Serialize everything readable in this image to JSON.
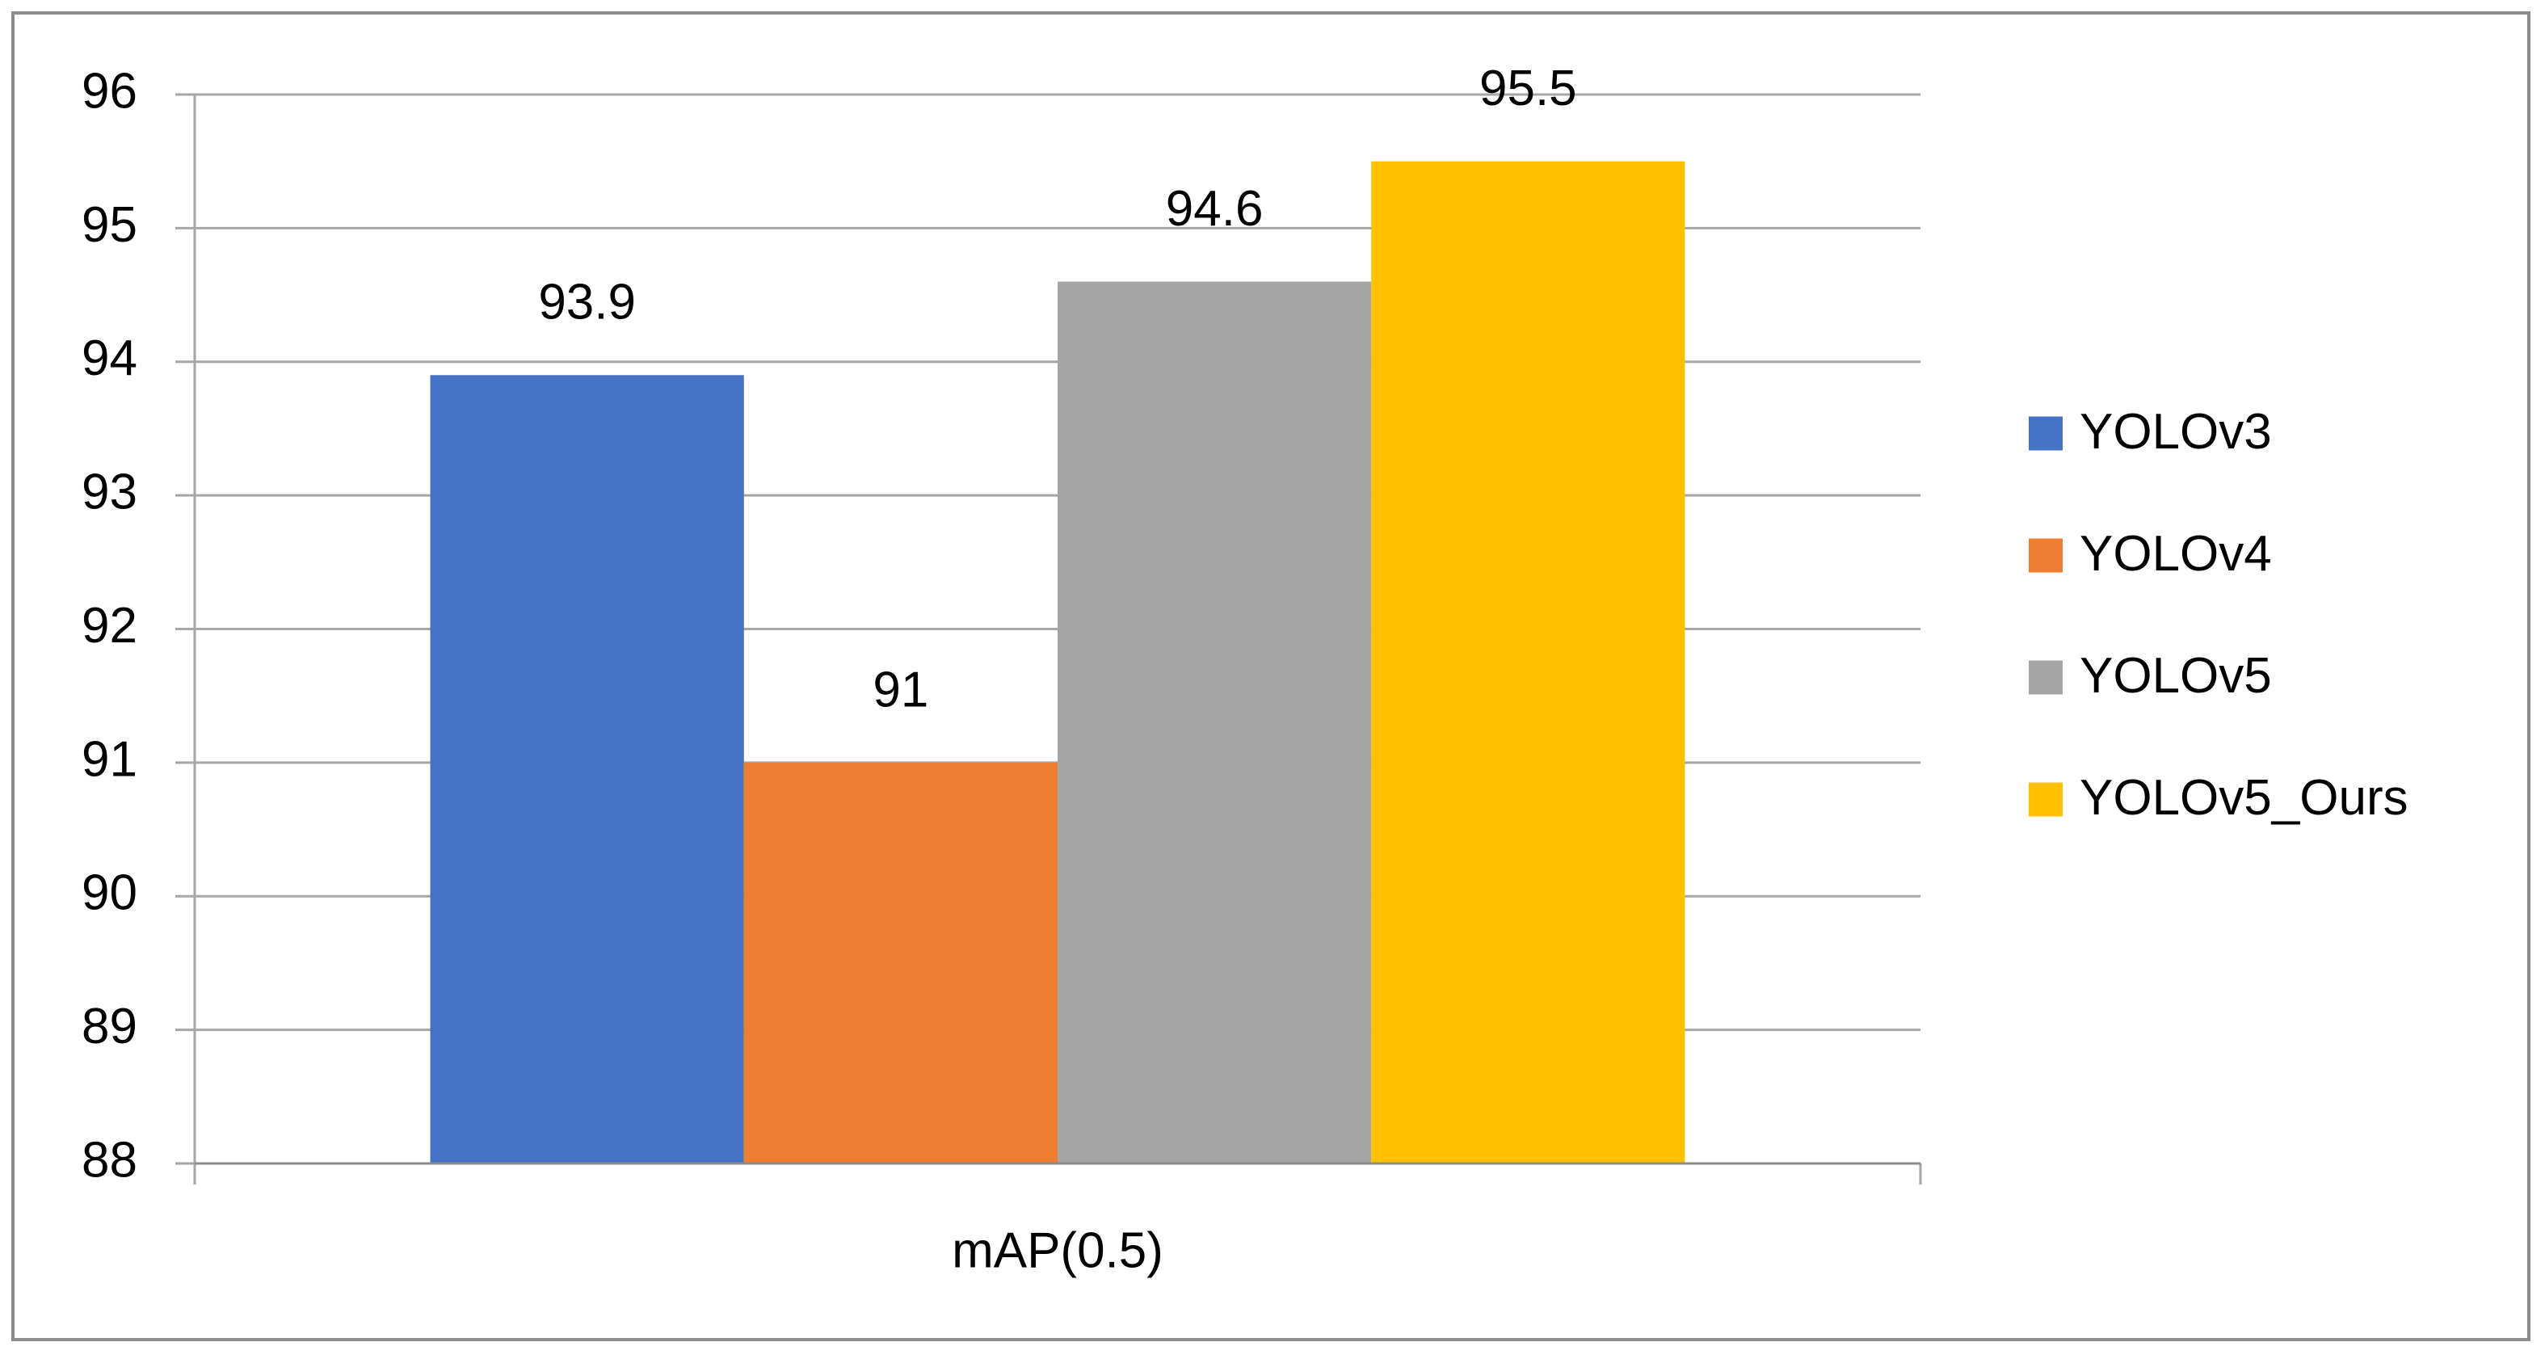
{
  "chart_data": {
    "type": "bar",
    "categories": [
      "mAP(0.5)"
    ],
    "series": [
      {
        "name": "YOLOv3",
        "color": "#4472c4",
        "values": [
          93.9
        ]
      },
      {
        "name": "YOLOv4",
        "color": "#ed7d31",
        "values": [
          91
        ]
      },
      {
        "name": "YOLOv5",
        "color": "#a5a5a5",
        "values": [
          94.6
        ]
      },
      {
        "name": "YOLOv5_Ours",
        "color": "#ffc000",
        "values": [
          95.5
        ]
      }
    ],
    "ylim": [
      88,
      96
    ],
    "yticks": [
      88,
      89,
      90,
      91,
      92,
      93,
      94,
      95,
      96
    ],
    "grid": true,
    "legend": "right"
  }
}
